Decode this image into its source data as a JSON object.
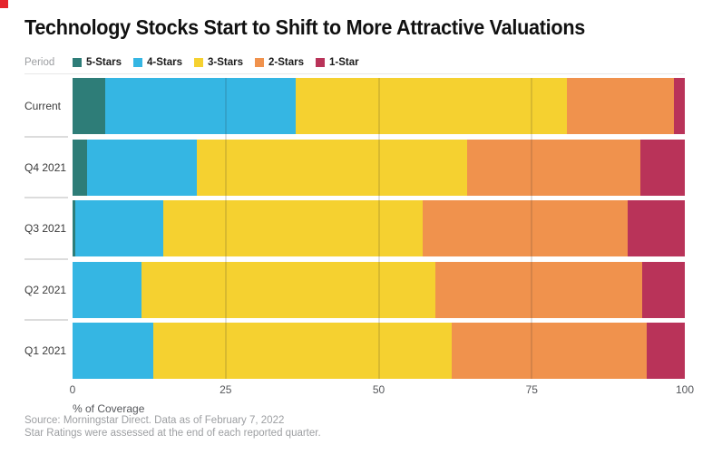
{
  "brand": {
    "accent_square_color": "#e5242b"
  },
  "title": "Technology Stocks Start to Shift to More Attractive Valuations",
  "legend": {
    "label": "Period",
    "items": [
      {
        "name": "5-Stars",
        "color": "#2e7d78"
      },
      {
        "name": "4-Stars",
        "color": "#35b6e3"
      },
      {
        "name": "3-Stars",
        "color": "#f5d130"
      },
      {
        "name": "2-Stars",
        "color": "#f0924d"
      },
      {
        "name": "1-Star",
        "color": "#b93359"
      }
    ]
  },
  "chart_data": {
    "type": "bar",
    "stacked": true,
    "orientation": "horizontal",
    "unit": "percent of coverage",
    "title": "Technology Stocks Start to Shift to More Attractive Valuations",
    "categories": [
      "Current",
      "Q4 2021",
      "Q3 2021",
      "Q2 2021",
      "Q1 2021"
    ],
    "series": [
      {
        "name": "5-Stars",
        "color": "#2e7d78",
        "values": [
          5.4,
          2.4,
          0.5,
          0.0,
          0.0
        ]
      },
      {
        "name": "4-Stars",
        "color": "#35b6e3",
        "values": [
          31.0,
          17.9,
          14.3,
          11.3,
          13.2
        ]
      },
      {
        "name": "3-Stars",
        "color": "#f5d130",
        "values": [
          44.3,
          44.1,
          42.4,
          48.0,
          48.8
        ]
      },
      {
        "name": "2-Stars",
        "color": "#f0924d",
        "values": [
          17.5,
          28.4,
          33.4,
          33.7,
          31.8
        ]
      },
      {
        "name": "1-Star",
        "color": "#b93359",
        "values": [
          1.8,
          7.2,
          9.4,
          7.0,
          6.2
        ]
      }
    ],
    "xlabel": "% of Coverage",
    "xlim": [
      0,
      100
    ],
    "x_ticks": [
      0,
      25,
      50,
      75,
      100
    ],
    "x_tick_labels": [
      "0",
      "25",
      "50",
      "75",
      "100"
    ],
    "gridlines": [
      25,
      50,
      75
    ],
    "legend_position": "top"
  },
  "footer": {
    "source_line1": "Source: Morningstar Direct. Data as of February 7, 2022",
    "source_line2": "Star Ratings were assessed at the end of each reported quarter."
  }
}
